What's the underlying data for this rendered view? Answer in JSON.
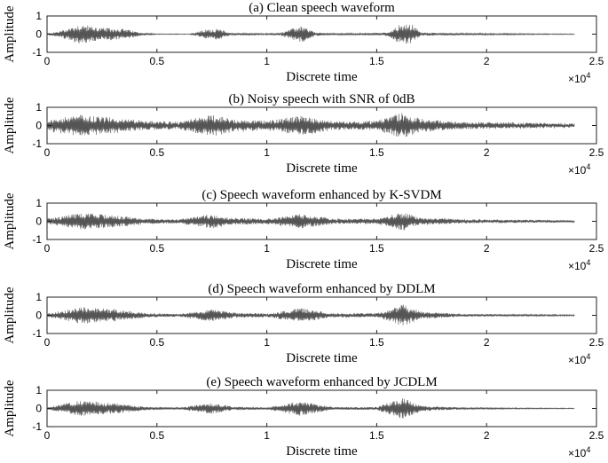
{
  "chart_data": [
    {
      "type": "line",
      "title": "(a) Clean speech waveform",
      "xlabel": "Discrete time",
      "ylabel": "Amplitude",
      "xlim": [
        0,
        2.5
      ],
      "ylim": [
        -1,
        1
      ],
      "x_multiplier": "×10",
      "x_multiplier_exp": "4",
      "xticks": [
        "0",
        "0.5",
        "1",
        "1.5",
        "2",
        "2.5"
      ],
      "yticks": [
        "1",
        "0",
        "-1"
      ],
      "signal_end": 2.4,
      "envelope": [
        {
          "x": 0.0,
          "amp": 0.02
        },
        {
          "x": 0.05,
          "amp": 0.15
        },
        {
          "x": 0.15,
          "amp": 0.55
        },
        {
          "x": 0.25,
          "amp": 0.35
        },
        {
          "x": 0.35,
          "amp": 0.3
        },
        {
          "x": 0.42,
          "amp": 0.1
        },
        {
          "x": 0.5,
          "amp": 0.02
        },
        {
          "x": 0.65,
          "amp": 0.02
        },
        {
          "x": 0.72,
          "amp": 0.25
        },
        {
          "x": 0.78,
          "amp": 0.3
        },
        {
          "x": 0.84,
          "amp": 0.05
        },
        {
          "x": 0.9,
          "amp": 0.08
        },
        {
          "x": 0.96,
          "amp": 0.04
        },
        {
          "x": 1.05,
          "amp": 0.05
        },
        {
          "x": 1.1,
          "amp": 0.25
        },
        {
          "x": 1.16,
          "amp": 0.45
        },
        {
          "x": 1.22,
          "amp": 0.1
        },
        {
          "x": 1.3,
          "amp": 0.05
        },
        {
          "x": 1.4,
          "amp": 0.05
        },
        {
          "x": 1.55,
          "amp": 0.1
        },
        {
          "x": 1.6,
          "amp": 0.5
        },
        {
          "x": 1.66,
          "amp": 0.55
        },
        {
          "x": 1.7,
          "amp": 0.1
        },
        {
          "x": 1.85,
          "amp": 0.06
        },
        {
          "x": 2.05,
          "amp": 0.04
        },
        {
          "x": 2.4,
          "amp": 0.02
        }
      ],
      "noise_floor": 0.0,
      "color": "#555555"
    },
    {
      "type": "line",
      "title": "(b) Noisy speech with SNR of 0dB",
      "xlabel": "Discrete time",
      "ylabel": "Amplitude",
      "xlim": [
        0,
        2.5
      ],
      "ylim": [
        -1,
        1
      ],
      "x_multiplier": "×10",
      "x_multiplier_exp": "4",
      "xticks": [
        "0",
        "0.5",
        "1",
        "1.5",
        "2",
        "2.5"
      ],
      "yticks": [
        "1",
        "0",
        "-1"
      ],
      "signal_end": 2.4,
      "envelope": [
        {
          "x": 0.0,
          "amp": 0.3
        },
        {
          "x": 0.15,
          "amp": 0.6
        },
        {
          "x": 0.3,
          "amp": 0.45
        },
        {
          "x": 0.45,
          "amp": 0.25
        },
        {
          "x": 0.6,
          "amp": 0.2
        },
        {
          "x": 0.75,
          "amp": 0.6
        },
        {
          "x": 0.85,
          "amp": 0.35
        },
        {
          "x": 1.0,
          "amp": 0.25
        },
        {
          "x": 1.15,
          "amp": 0.55
        },
        {
          "x": 1.3,
          "amp": 0.25
        },
        {
          "x": 1.5,
          "amp": 0.25
        },
        {
          "x": 1.62,
          "amp": 0.75
        },
        {
          "x": 1.7,
          "amp": 0.35
        },
        {
          "x": 1.9,
          "amp": 0.2
        },
        {
          "x": 2.2,
          "amp": 0.15
        },
        {
          "x": 2.4,
          "amp": 0.12
        }
      ],
      "noise_floor": 0.15,
      "color": "#555555"
    },
    {
      "type": "line",
      "title": "(c) Speech waveform enhanced by K-SVDM",
      "xlabel": "Discrete time",
      "ylabel": "Amplitude",
      "xlim": [
        0,
        2.5
      ],
      "ylim": [
        -1,
        1
      ],
      "x_multiplier": "×10",
      "x_multiplier_exp": "4",
      "xticks": [
        "0",
        "0.5",
        "1",
        "1.5",
        "2",
        "2.5"
      ],
      "yticks": [
        "1",
        "0",
        "-1"
      ],
      "signal_end": 2.4,
      "envelope": [
        {
          "x": 0.0,
          "amp": 0.15
        },
        {
          "x": 0.15,
          "amp": 0.45
        },
        {
          "x": 0.3,
          "amp": 0.35
        },
        {
          "x": 0.45,
          "amp": 0.15
        },
        {
          "x": 0.6,
          "amp": 0.12
        },
        {
          "x": 0.75,
          "amp": 0.4
        },
        {
          "x": 0.85,
          "amp": 0.2
        },
        {
          "x": 1.0,
          "amp": 0.15
        },
        {
          "x": 1.15,
          "amp": 0.4
        },
        {
          "x": 1.3,
          "amp": 0.15
        },
        {
          "x": 1.5,
          "amp": 0.15
        },
        {
          "x": 1.62,
          "amp": 0.5
        },
        {
          "x": 1.7,
          "amp": 0.2
        },
        {
          "x": 1.9,
          "amp": 0.12
        },
        {
          "x": 2.2,
          "amp": 0.08
        },
        {
          "x": 2.4,
          "amp": 0.06
        }
      ],
      "noise_floor": 0.06,
      "color": "#555555"
    },
    {
      "type": "line",
      "title": "(d) Speech waveform enhanced by DDLM",
      "xlabel": "Discrete time",
      "ylabel": "Amplitude",
      "xlim": [
        0,
        2.5
      ],
      "ylim": [
        -1,
        1
      ],
      "x_multiplier": "×10",
      "x_multiplier_exp": "4",
      "xticks": [
        "0",
        "0.5",
        "1",
        "1.5",
        "2",
        "2.5"
      ],
      "yticks": [
        "1",
        "0",
        "-1"
      ],
      "signal_end": 2.4,
      "envelope": [
        {
          "x": 0.0,
          "amp": 0.1
        },
        {
          "x": 0.15,
          "amp": 0.45
        },
        {
          "x": 0.3,
          "amp": 0.35
        },
        {
          "x": 0.45,
          "amp": 0.12
        },
        {
          "x": 0.6,
          "amp": 0.08
        },
        {
          "x": 0.75,
          "amp": 0.35
        },
        {
          "x": 0.85,
          "amp": 0.15
        },
        {
          "x": 1.0,
          "amp": 0.1
        },
        {
          "x": 1.15,
          "amp": 0.4
        },
        {
          "x": 1.3,
          "amp": 0.12
        },
        {
          "x": 1.5,
          "amp": 0.12
        },
        {
          "x": 1.62,
          "amp": 0.6
        },
        {
          "x": 1.7,
          "amp": 0.2
        },
        {
          "x": 1.9,
          "amp": 0.08
        },
        {
          "x": 2.2,
          "amp": 0.05
        },
        {
          "x": 2.4,
          "amp": 0.04
        }
      ],
      "noise_floor": 0.04,
      "color": "#555555"
    },
    {
      "type": "line",
      "title": "(e) Speech waveform enhanced by JCDLM",
      "xlabel": "Discrete time",
      "ylabel": "Amplitude",
      "xlim": [
        0,
        2.5
      ],
      "ylim": [
        -1,
        1
      ],
      "x_multiplier": "×10",
      "x_multiplier_exp": "4",
      "xticks": [
        "0",
        "0.5",
        "1",
        "1.5",
        "2",
        "2.5"
      ],
      "yticks": [
        "1",
        "0",
        "-1"
      ],
      "signal_end": 2.4,
      "envelope": [
        {
          "x": 0.0,
          "amp": 0.06
        },
        {
          "x": 0.15,
          "amp": 0.45
        },
        {
          "x": 0.3,
          "amp": 0.3
        },
        {
          "x": 0.45,
          "amp": 0.1
        },
        {
          "x": 0.6,
          "amp": 0.05
        },
        {
          "x": 0.75,
          "amp": 0.3
        },
        {
          "x": 0.85,
          "amp": 0.1
        },
        {
          "x": 1.0,
          "amp": 0.06
        },
        {
          "x": 1.15,
          "amp": 0.4
        },
        {
          "x": 1.3,
          "amp": 0.08
        },
        {
          "x": 1.5,
          "amp": 0.08
        },
        {
          "x": 1.62,
          "amp": 0.6
        },
        {
          "x": 1.7,
          "amp": 0.15
        },
        {
          "x": 1.9,
          "amp": 0.05
        },
        {
          "x": 2.2,
          "amp": 0.03
        },
        {
          "x": 2.4,
          "amp": 0.02
        }
      ],
      "noise_floor": 0.02,
      "color": "#555555"
    }
  ]
}
